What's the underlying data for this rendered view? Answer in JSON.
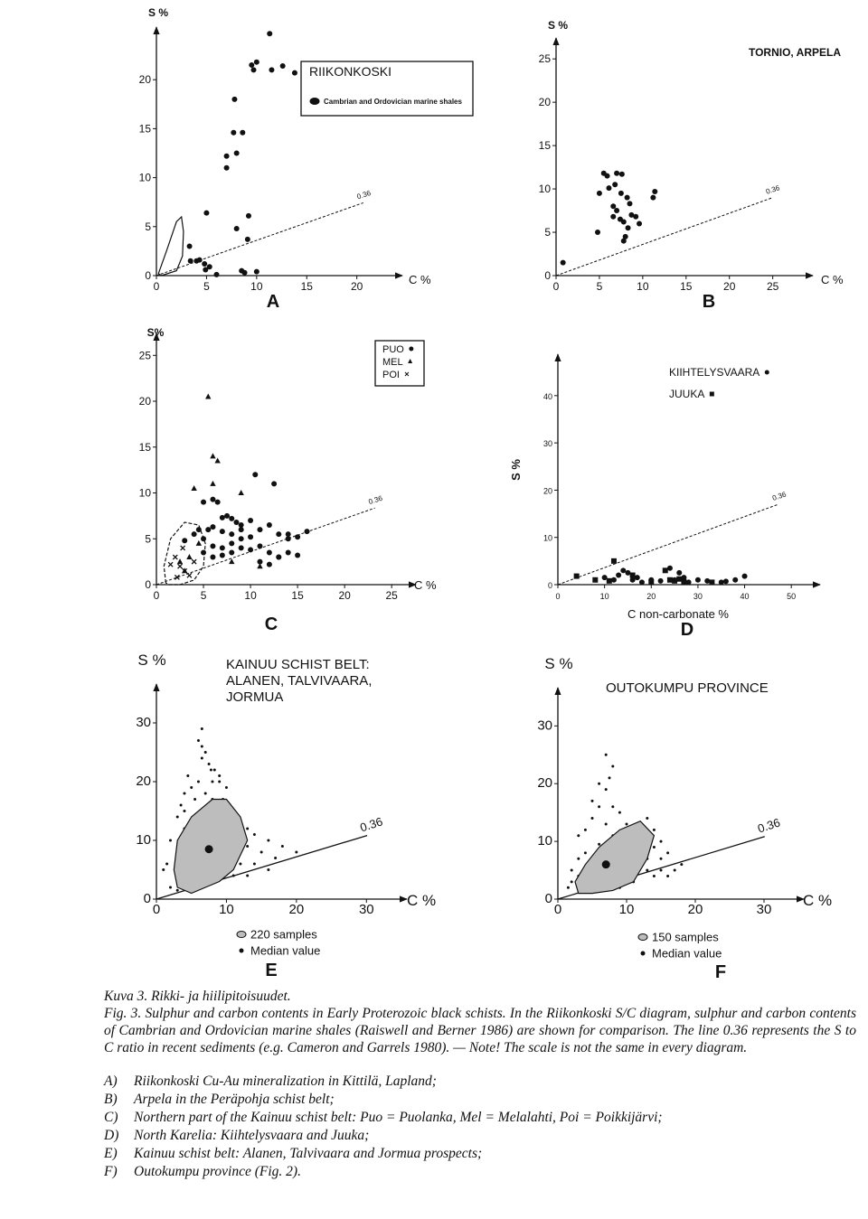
{
  "chart_data": [
    {
      "type": "scatter",
      "panel": "A",
      "title": "RIIKONKOSKI",
      "xlabel": "C %",
      "ylabel": "S %",
      "xlim": [
        0,
        24
      ],
      "ylim": [
        0,
        25
      ],
      "xticks": [
        0,
        5,
        10,
        15,
        20
      ],
      "yticks": [
        0,
        5,
        10,
        15,
        20
      ],
      "ratio_line": 0.36,
      "ratio_line_style": "dashed",
      "series": [
        {
          "marker": "circle",
          "color": "#111111",
          "x": [
            11.3,
            9.5,
            10.0,
            9.7,
            11.5,
            12.6,
            13.8,
            7.8,
            7.7,
            8.6,
            7.0,
            8.0,
            7.0,
            5.0,
            9.2,
            8.0,
            9.1,
            3.3,
            4.0,
            3.4,
            4.3,
            4.8,
            5.3,
            4.9,
            8.5,
            8.8,
            10.0,
            6.0
          ],
          "values": [
            24.7,
            21.5,
            21.8,
            21.0,
            21.0,
            21.4,
            20.7,
            18.0,
            14.6,
            14.6,
            12.2,
            12.5,
            11.0,
            6.4,
            6.1,
            4.8,
            3.7,
            3.0,
            1.5,
            1.5,
            1.6,
            1.2,
            0.9,
            0.6,
            0.5,
            0.3,
            0.4,
            0.1
          ]
        },
        {
          "name": "Cambrian and Ordovician marine shales",
          "kind": "region",
          "color": "#111111",
          "fill": "none",
          "x": [
            0.2,
            1.0,
            2.0,
            2.5,
            2.7,
            2.6,
            2.0,
            0.5
          ],
          "values": [
            0.2,
            2.5,
            5.5,
            6.0,
            4.5,
            2.0,
            0.5,
            0.0
          ]
        }
      ]
    },
    {
      "type": "scatter",
      "panel": "B",
      "title": "TORNIO, ARPELA",
      "xlabel": "C %",
      "ylabel": "S %",
      "xlim": [
        0,
        29
      ],
      "ylim": [
        0,
        27
      ],
      "xticks": [
        0,
        5,
        10,
        15,
        20,
        25
      ],
      "yticks": [
        0,
        5,
        10,
        15,
        20,
        25
      ],
      "ratio_line": 0.36,
      "ratio_line_style": "dashed",
      "series": [
        {
          "marker": "circle",
          "color": "#111111",
          "x": [
            5.5,
            5.9,
            7,
            7.6,
            6.8,
            6.1,
            7.5,
            8.2,
            5.0,
            11.4,
            11.2,
            6.6,
            7.0,
            8.5,
            8.7,
            6.6,
            7.4,
            7.8,
            9.2,
            9.6,
            8.3,
            4.8,
            8.0,
            7.8,
            0.8
          ],
          "values": [
            11.8,
            11.5,
            11.8,
            11.7,
            10.5,
            10.1,
            9.5,
            9.0,
            9.5,
            9.7,
            9.0,
            8.0,
            7.5,
            8.3,
            7.0,
            6.8,
            6.5,
            6.2,
            6.8,
            6.0,
            5.5,
            5.0,
            4.5,
            4.0,
            1.5
          ]
        }
      ]
    },
    {
      "type": "scatter",
      "panel": "C",
      "xlabel": "C %",
      "ylabel": "S%",
      "xlim": [
        0,
        27
      ],
      "ylim": [
        0,
        27
      ],
      "xticks": [
        0,
        5,
        10,
        15,
        20,
        25
      ],
      "yticks": [
        0,
        5,
        10,
        15,
        20,
        25
      ],
      "ratio_line": 0.36,
      "ratio_line_style": "dashed",
      "series": [
        {
          "name": "PUO",
          "marker": "circle",
          "color": "#111111",
          "x": [
            5,
            6,
            6.5,
            7,
            7.5,
            8,
            8.5,
            9,
            5.5,
            6,
            7,
            8,
            9,
            10,
            4,
            5,
            6,
            7,
            8,
            9,
            10,
            11,
            12,
            13,
            14,
            15,
            16,
            5,
            6,
            7,
            8,
            9,
            10,
            11,
            12,
            13,
            14,
            15,
            11,
            12,
            13,
            10.5,
            12.5,
            14,
            3,
            4.5
          ],
          "values": [
            9,
            9.3,
            9,
            7.3,
            7.5,
            7.2,
            6.8,
            6.5,
            6,
            6.3,
            5.8,
            5.5,
            6,
            7,
            5.5,
            5,
            4.2,
            4,
            4.5,
            5,
            5.2,
            6,
            6.5,
            5.5,
            5,
            5.2,
            5.8,
            3.5,
            3,
            3.2,
            3.5,
            4,
            3.8,
            4.2,
            3.5,
            3,
            3.5,
            3.2,
            2.5,
            2.2,
            3,
            12,
            11,
            5.5,
            4.8,
            6
          ]
        },
        {
          "name": "MEL",
          "marker": "triangle",
          "color": "#111111",
          "x": [
            5.5,
            6,
            9,
            6,
            4,
            6.5,
            3.5,
            3,
            2.5,
            8,
            11,
            4.5
          ],
          "values": [
            20.5,
            14,
            10,
            11,
            10.5,
            13.5,
            3,
            1.5,
            2.5,
            2.5,
            2,
            4.5
          ]
        },
        {
          "name": "POI",
          "marker": "cross",
          "color": "#111111",
          "x": [
            2,
            2.5,
            3,
            2.8,
            3.5,
            1.5,
            2.2,
            4
          ],
          "values": [
            3,
            2,
            1.5,
            4,
            1,
            2.2,
            0.8,
            2.5
          ]
        },
        {
          "kind": "region",
          "color": "#111111",
          "fill": "none",
          "line_style": "dashed",
          "x": [
            1,
            0.8,
            1.5,
            3,
            4.5,
            5.2,
            5,
            4,
            2.5,
            1.3
          ],
          "values": [
            0.2,
            2,
            5,
            6.8,
            6.5,
            4.5,
            2,
            0.5,
            0,
            0
          ]
        }
      ]
    },
    {
      "type": "scatter",
      "panel": "D",
      "xlabel": "C non-carbonate %",
      "ylabel": "S %",
      "xlim": [
        0,
        55
      ],
      "ylim": [
        0,
        48
      ],
      "xticks": [
        0,
        10,
        20,
        30,
        40,
        50
      ],
      "yticks": [
        0,
        10,
        20,
        30,
        40
      ],
      "ratio_line": 0.36,
      "ratio_line_style": "dashed",
      "series": [
        {
          "name": "KIIHTELYSVAARA",
          "marker": "circle",
          "color": "#111111",
          "x": [
            10,
            12,
            13,
            15,
            16,
            17,
            18,
            20,
            22,
            25,
            26,
            27,
            28,
            30,
            32,
            35,
            38,
            40,
            14,
            24,
            36
          ],
          "values": [
            1.5,
            1,
            2,
            2.5,
            1,
            1.5,
            0.5,
            1,
            0.8,
            1,
            2.5,
            1.5,
            0.5,
            1,
            0.8,
            0.5,
            1,
            1.8,
            3,
            3.5,
            0.7
          ]
        },
        {
          "name": "JUUKA",
          "marker": "square",
          "color": "#111111",
          "x": [
            4,
            8,
            11,
            12,
            16,
            20,
            23,
            24,
            25,
            26,
            27,
            33
          ],
          "values": [
            1.8,
            1,
            0.8,
            5,
            2,
            0.5,
            3,
            1,
            0.8,
            1.2,
            0.6,
            0.5
          ]
        }
      ]
    },
    {
      "type": "scatter",
      "panel": "E",
      "title_lines": [
        "KAINUU SCHIST BELT:",
        "ALANEN, TALVIVAARA,",
        "JORMUA"
      ],
      "xlabel": "C %",
      "ylabel": "S %",
      "xlim": [
        0,
        35
      ],
      "ylim": [
        0,
        36
      ],
      "xticks": [
        0,
        10,
        20,
        30
      ],
      "yticks": [
        0,
        10,
        20,
        30
      ],
      "ratio_line": 0.36,
      "ratio_line_style": "solid",
      "series": [
        {
          "marker": "dot",
          "color": "#111111",
          "x": [
            6,
            6.5,
            7,
            6.5,
            7.5,
            7.8,
            8.3,
            9,
            8,
            9,
            10,
            6,
            5,
            4,
            5.5,
            8,
            9.5,
            10.5,
            11,
            3,
            4,
            12,
            13,
            14,
            16,
            18,
            20,
            15,
            14,
            12,
            11,
            13,
            16,
            17,
            2,
            1.5,
            2,
            3,
            1,
            11,
            4,
            6,
            8,
            5,
            9,
            7,
            10,
            6.5,
            13,
            12,
            4.5,
            7,
            3.5
          ],
          "values": [
            27,
            26,
            25,
            24,
            23,
            22,
            22,
            21,
            20,
            20,
            19,
            20,
            19,
            18,
            17,
            17,
            17,
            16,
            15,
            14,
            15,
            13,
            12,
            11,
            10,
            9,
            8,
            8,
            6,
            6,
            4,
            4,
            5,
            7,
            10,
            6,
            2,
            1.5,
            5,
            12,
            12,
            13,
            14,
            7,
            6,
            5,
            9,
            29,
            9,
            8.5,
            21,
            18,
            16
          ]
        },
        {
          "name": "220 samples",
          "kind": "region",
          "color": "#111111",
          "fill": "#bdbdbd",
          "x": [
            3,
            5,
            7,
            9,
            11,
            13,
            12,
            10,
            8,
            5,
            3,
            2.5
          ],
          "values": [
            2,
            1,
            2,
            3,
            5,
            10,
            14,
            17,
            17,
            14,
            10,
            5
          ]
        },
        {
          "name": "Median value",
          "marker": "circle",
          "color": "#111111",
          "x": [
            7.5
          ],
          "values": [
            8.5
          ]
        }
      ]
    },
    {
      "type": "scatter",
      "panel": "F",
      "title": "OUTOKUMPU PROVINCE",
      "xlabel": "C %",
      "ylabel": "S %",
      "xlim": [
        0,
        35
      ],
      "ylim": [
        0,
        36
      ],
      "xticks": [
        0,
        10,
        20,
        30
      ],
      "yticks": [
        0,
        10,
        20,
        30
      ],
      "ratio_line": 0.36,
      "ratio_line_style": "solid",
      "series": [
        {
          "marker": "dot",
          "color": "#111111",
          "x": [
            7,
            8,
            7.5,
            6,
            7,
            5,
            6,
            8,
            9,
            5,
            7,
            10,
            11,
            12,
            4,
            3,
            8,
            13,
            14,
            12,
            6,
            4,
            3,
            2,
            3,
            2,
            1.5,
            10,
            12,
            13,
            14,
            15,
            16,
            17,
            18,
            11,
            9,
            13,
            15,
            16,
            9,
            6,
            4,
            11,
            10,
            14,
            13,
            15
          ],
          "values": [
            25,
            23,
            21,
            20,
            19,
            17,
            16,
            16,
            15,
            14,
            13,
            13,
            12,
            12,
            12,
            11,
            11,
            10,
            9,
            9,
            9.5,
            8,
            7,
            5,
            4,
            3,
            2,
            6,
            6,
            5,
            4,
            5,
            4,
            5,
            6,
            3,
            2,
            7,
            7,
            8,
            4,
            3,
            2,
            9,
            10,
            12,
            14,
            10
          ]
        },
        {
          "name": "150 samples",
          "kind": "region",
          "color": "#111111",
          "fill": "#bdbdbd",
          "x": [
            3,
            5,
            8,
            11,
            13,
            14,
            12,
            9,
            6,
            4,
            2.5
          ],
          "values": [
            1,
            1,
            1.5,
            3,
            7,
            11,
            13.5,
            12,
            9,
            6,
            3
          ]
        },
        {
          "name": "Median value",
          "marker": "circle",
          "color": "#111111",
          "x": [
            7
          ],
          "values": [
            6
          ]
        }
      ]
    }
  ],
  "caption": {
    "finnish": "Kuva 3. Rikki- ja hiilipitoisuudet.",
    "english": "Fig. 3. Sulphur and carbon contents in Early Proterozoic black schists. In the Riikonkoski S/C diagram, sulphur and carbon contents of Cambrian and Ordovician marine shales (Raiswell and Berner 1986) are shown for comparison. The line 0.36 represents the S to C ratio in recent sediments (e.g. Cameron and Garrels 1980). — Note! The scale is not the same in every diagram.",
    "items": [
      {
        "label": "A)",
        "text": "Riikonkoski Cu-Au mineralization in Kittilä, Lapland;"
      },
      {
        "label": "B)",
        "text": "Arpela in the Peräpohja schist belt;"
      },
      {
        "label": "C)",
        "text": "Northern part of the Kainuu schist belt: Puo = Puolanka, Mel = Melalahti, Poi = Poikkijärvi;"
      },
      {
        "label": "D)",
        "text": "North Karelia: Kiihtelysvaara and Juuka;"
      },
      {
        "label": "E)",
        "text": "Kainuu schist belt: Alanen, Talvivaara and Jormua prospects;"
      },
      {
        "label": "F)",
        "text": "Outokumpu province (Fig. 2)."
      }
    ]
  }
}
